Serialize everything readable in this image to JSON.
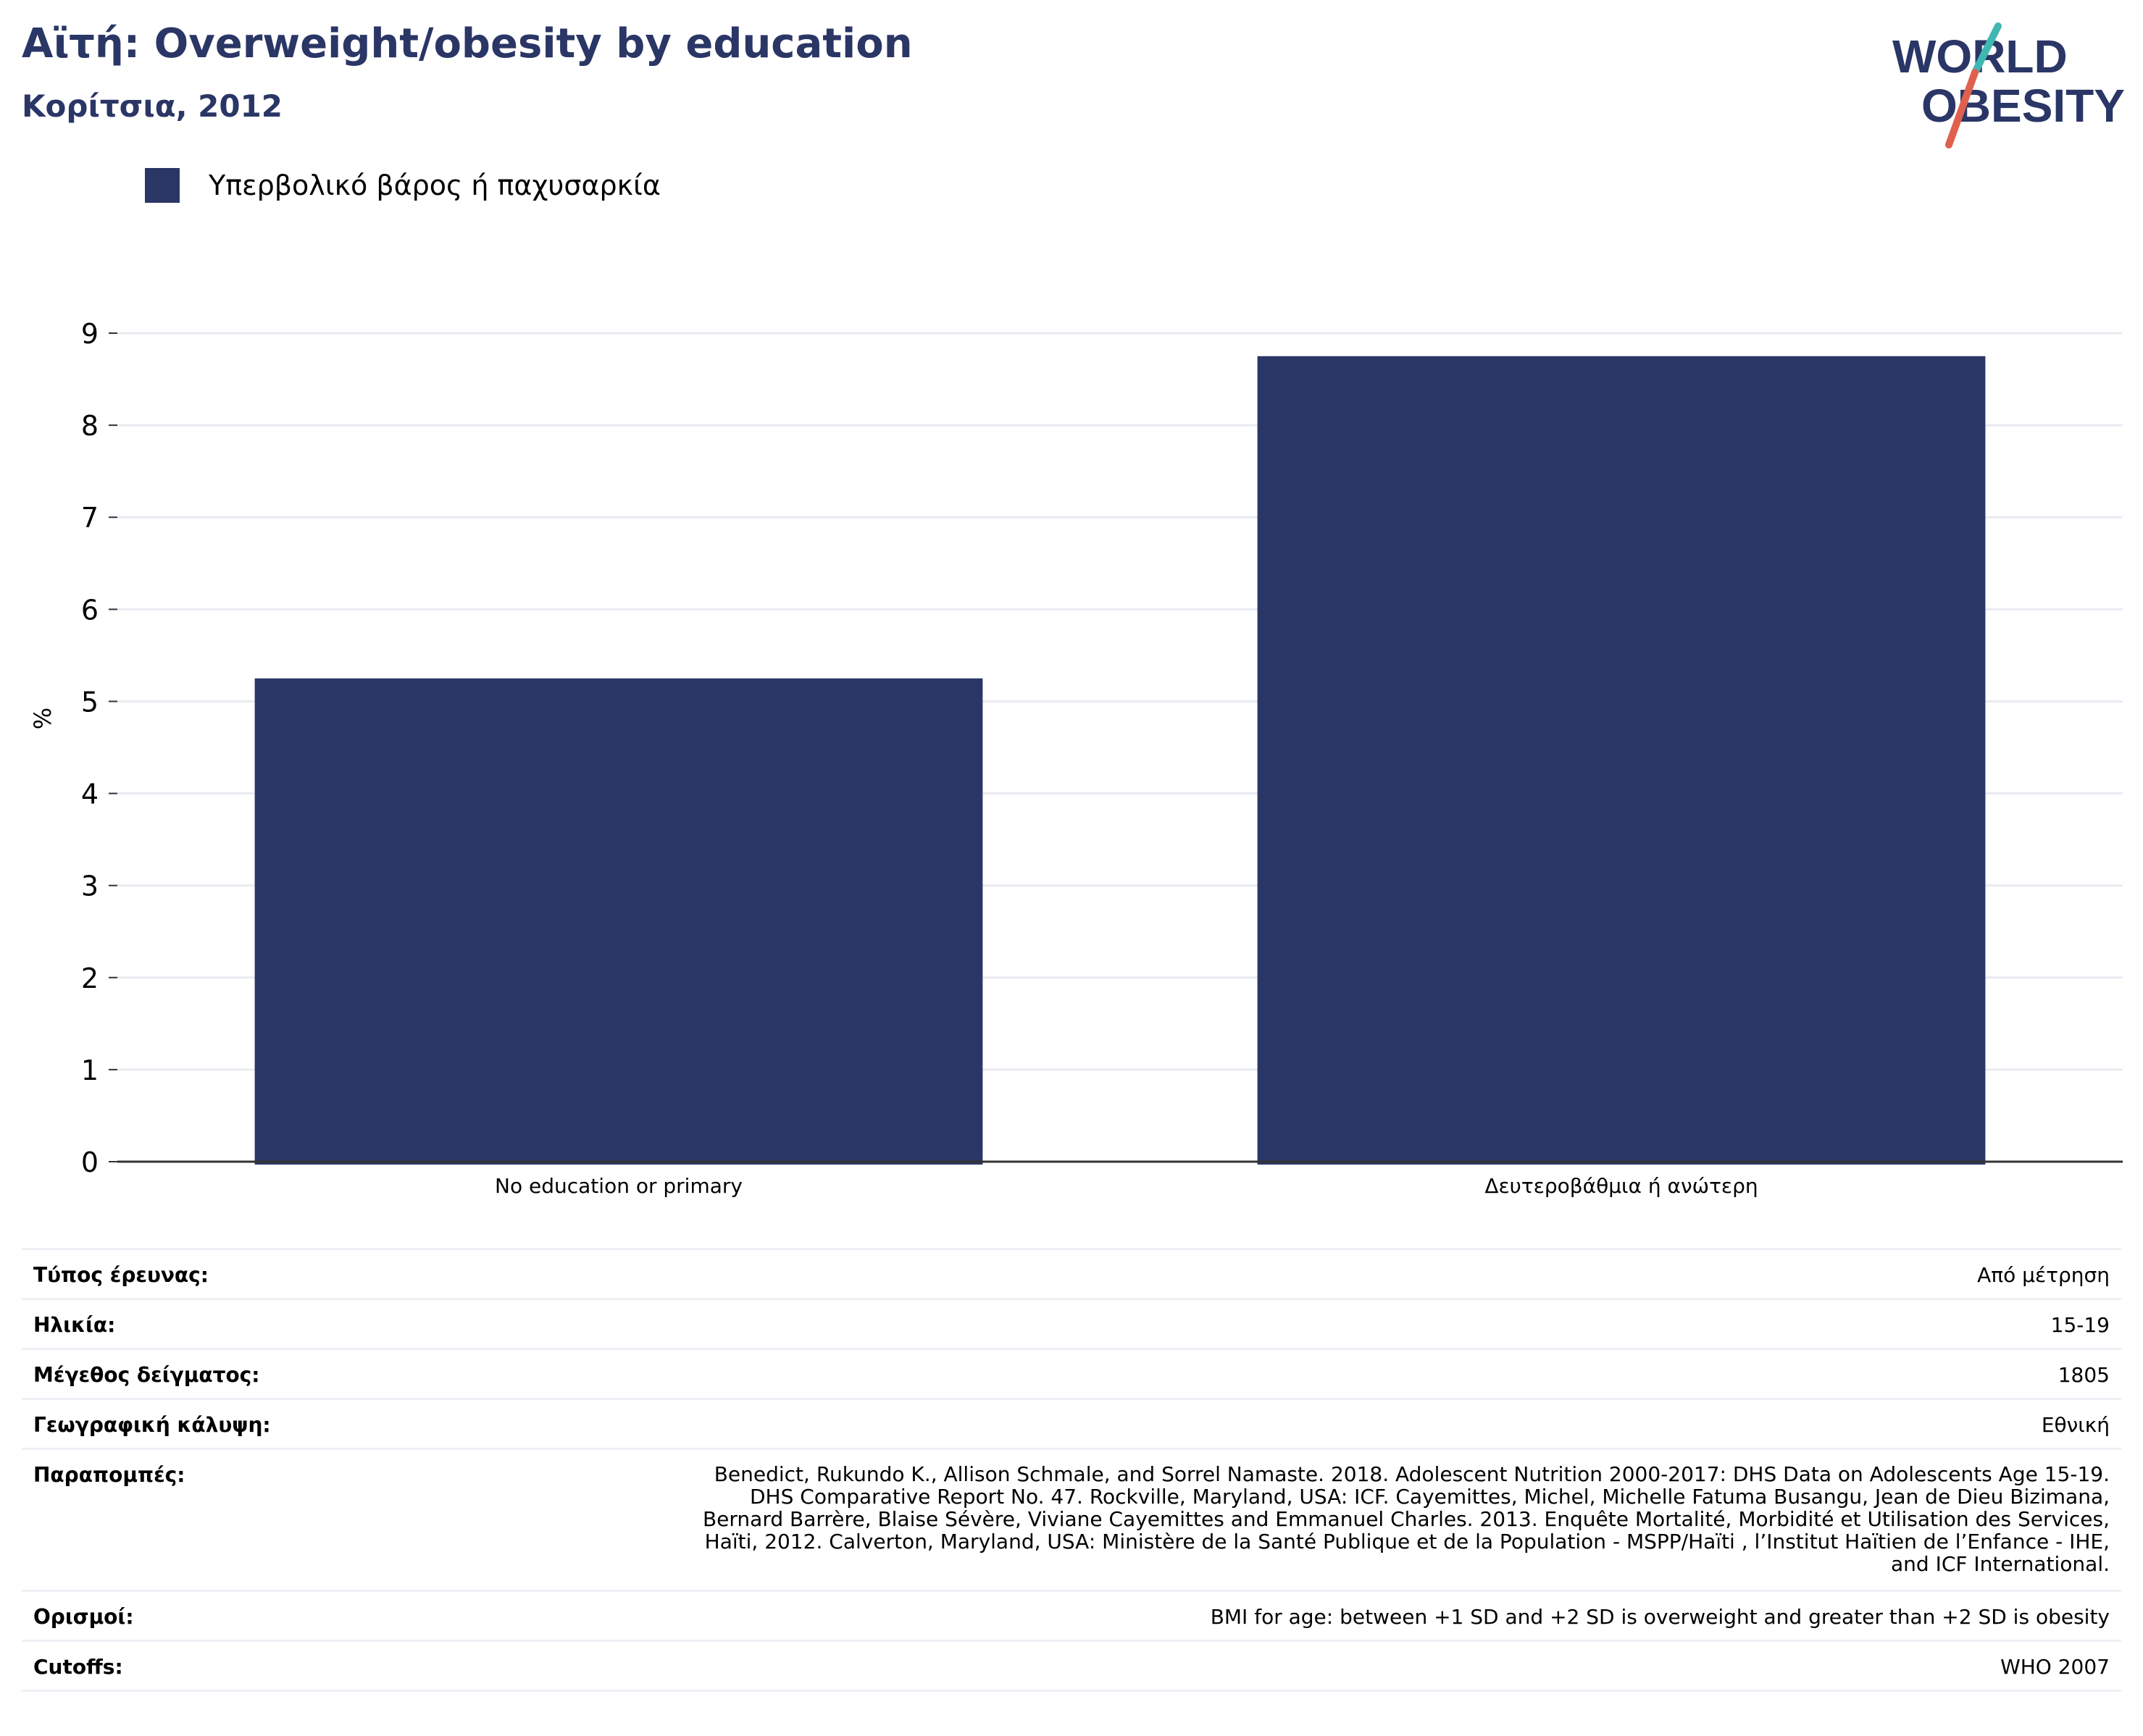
{
  "header": {
    "title": "Αϊτή: Overweight/obesity by education",
    "subtitle": "Κορίτσια, 2012"
  },
  "logo": {
    "line1": "WORLD",
    "line2": "OBESITY",
    "colors": {
      "text": "#2a3665",
      "slash_top": "#3fb8b2",
      "slash_bottom": "#e0604e"
    }
  },
  "colors": {
    "bar": "#2a3665",
    "grid": "#e8ebf2",
    "axis": "#333333"
  },
  "chart_data": {
    "type": "bar",
    "title": "Αϊτή: Overweight/obesity by education",
    "subtitle": "Κορίτσια, 2012",
    "categories": [
      "No education or primary",
      "Δευτεροβάθμια ή ανώτερη"
    ],
    "series": [
      {
        "name": "Υπερβολικό βάρος ή παχυσαρκία",
        "values": [
          5.25,
          8.75
        ]
      }
    ],
    "xlabel": "",
    "ylabel": "%",
    "ylim": [
      0,
      9
    ],
    "yticks": [
      0,
      1,
      2,
      3,
      4,
      5,
      6,
      7,
      8,
      9
    ],
    "grid": true,
    "legend": "top-left"
  },
  "info": {
    "survey_type": {
      "label": "Τύπος έρευνας:",
      "value": "Από μέτρηση"
    },
    "age": {
      "label": "Ηλικία:",
      "value": "15-19"
    },
    "sample_size": {
      "label": "Μέγεθος δείγματος:",
      "value": "1805"
    },
    "coverage": {
      "label": "Γεωγραφική κάλυψη:",
      "value": "Εθνική"
    },
    "references": {
      "label": "Παραπομπές:",
      "lines": [
        "Benedict, Rukundo K., Allison Schmale, and Sorrel Namaste. 2018. Adolescent Nutrition 2000-2017: DHS Data on Adolescents Age 15-19.",
        "DHS Comparative Report No. 47. Rockville, Maryland, USA: ICF. Cayemittes, Michel, Michelle Fatuma Busangu, Jean de Dieu Bizimana,",
        "Bernard Barrère, Blaise Sévère, Viviane Cayemittes and Emmanuel Charles. 2013. Enquête Mortalité, Morbidité et Utilisation des Services,",
        "Haïti, 2012. Calverton, Maryland, USA: Ministère de la Santé Publique et de la Population - MSPP/Haïti , l’Institut Haïtien de l’Enfance - IHE,",
        "and ICF International."
      ]
    },
    "definitions": {
      "label": "Ορισμοί:",
      "value": "BMI for age: between +1 SD and +2 SD is overweight and greater than +2 SD is obesity"
    },
    "cutoffs": {
      "label": "Cutoffs:",
      "value": "WHO 2007"
    }
  }
}
